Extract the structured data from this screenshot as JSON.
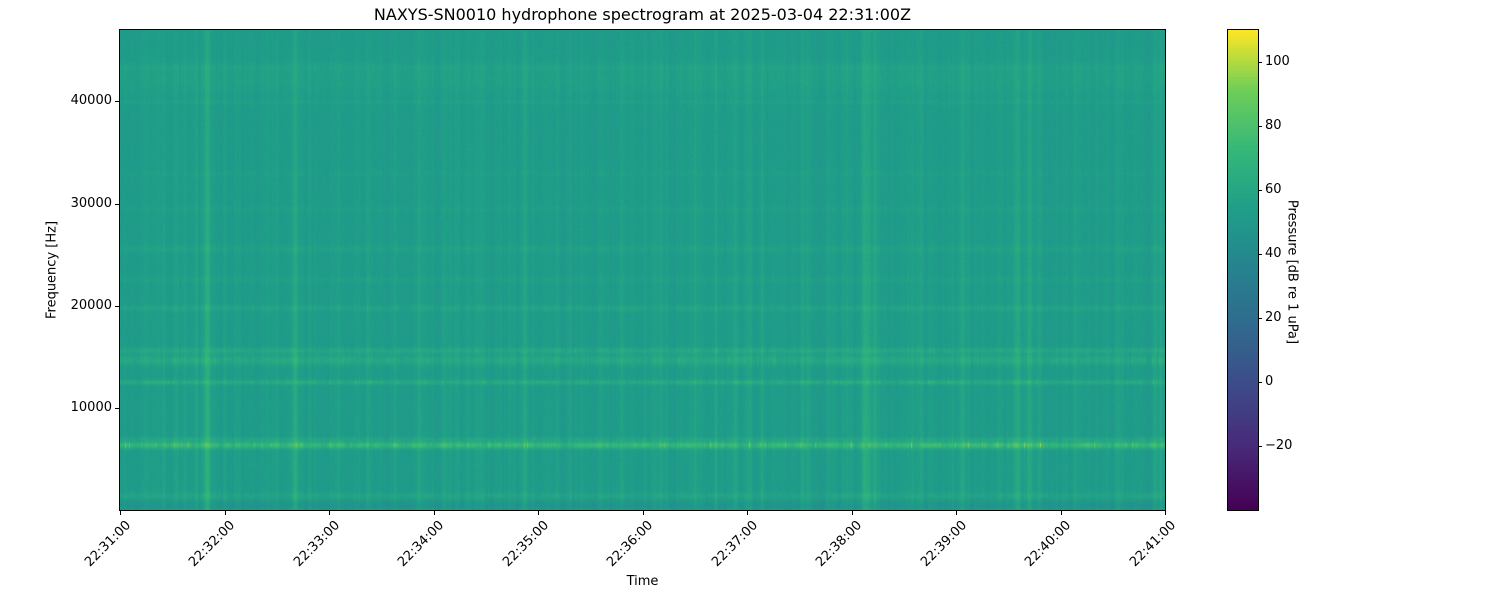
{
  "figure": {
    "title": "NAXYS-SN0010 hydrophone spectrogram at 2025-03-04 22:31:00Z",
    "xlabel": "Time",
    "ylabel": "Frequency [Hz]",
    "colorbar_label": "Pressure [dB re 1 uPa]"
  },
  "chart_data": {
    "type": "heatmap",
    "subtype": "spectrogram",
    "title": "NAXYS-SN0010 hydrophone spectrogram at 2025-03-04 22:31:00Z",
    "xlabel": "Time",
    "ylabel": "Frequency [Hz]",
    "x_range_s": [
      0,
      600
    ],
    "y_range_hz": [
      0,
      47000
    ],
    "x_ticks": [
      {
        "label": "22:31:00",
        "time_s": 0
      },
      {
        "label": "22:32:00",
        "time_s": 60
      },
      {
        "label": "22:33:00",
        "time_s": 120
      },
      {
        "label": "22:34:00",
        "time_s": 180
      },
      {
        "label": "22:35:00",
        "time_s": 240
      },
      {
        "label": "22:36:00",
        "time_s": 300
      },
      {
        "label": "22:37:00",
        "time_s": 360
      },
      {
        "label": "22:38:00",
        "time_s": 420
      },
      {
        "label": "22:39:00",
        "time_s": 480
      },
      {
        "label": "22:40:00",
        "time_s": 540
      },
      {
        "label": "22:41:00",
        "time_s": 600
      }
    ],
    "y_ticks": [
      {
        "label": "10000",
        "hz": 10000
      },
      {
        "label": "20000",
        "hz": 20000
      },
      {
        "label": "30000",
        "hz": 30000
      },
      {
        "label": "40000",
        "hz": 40000
      }
    ],
    "colormap": "viridis",
    "colormap_stops": [
      "#440154",
      "#482878",
      "#3e4989",
      "#31688e",
      "#26828e",
      "#1f9e89",
      "#35b779",
      "#6ece58",
      "#fde725"
    ],
    "colorbar": {
      "label": "Pressure [dB re 1 uPa]",
      "vmin": -40,
      "vmax": 110,
      "ticks": [
        {
          "label": "100",
          "value": 100
        },
        {
          "label": "80",
          "value": 80
        },
        {
          "label": "60",
          "value": 60
        },
        {
          "label": "40",
          "value": 40
        },
        {
          "label": "20",
          "value": 20
        },
        {
          "label": "0",
          "value": 0
        },
        {
          "label": "−20",
          "value": -20
        }
      ]
    },
    "background_level_db": 52,
    "noise_seed": 1337,
    "bands": [
      {
        "center_hz": 500,
        "width_hz": 450,
        "level_db": -5,
        "variability": 0.3
      },
      {
        "center_hz": 1450,
        "width_hz": 320,
        "level_db": 6,
        "variability": 0.9
      },
      {
        "center_hz": 6400,
        "width_hz": 340,
        "level_db": 24,
        "variability": 1.0
      },
      {
        "center_hz": 7000,
        "width_hz": 180,
        "level_db": 7,
        "variability": 1.0
      },
      {
        "center_hz": 12550,
        "width_hz": 230,
        "level_db": 12,
        "variability": 0.9
      },
      {
        "center_hz": 14700,
        "width_hz": 480,
        "level_db": 10,
        "variability": 0.85
      },
      {
        "center_hz": 15650,
        "width_hz": 280,
        "level_db": 9,
        "variability": 0.85
      },
      {
        "center_hz": 19800,
        "width_hz": 300,
        "level_db": 6,
        "variability": 0.8
      },
      {
        "center_hz": 22600,
        "width_hz": 320,
        "level_db": 3,
        "variability": 0.7
      },
      {
        "center_hz": 25600,
        "width_hz": 380,
        "level_db": 4,
        "variability": 0.75
      },
      {
        "center_hz": 29500,
        "width_hz": 280,
        "level_db": 2.5,
        "variability": 0.7
      },
      {
        "center_hz": 33000,
        "width_hz": 300,
        "level_db": 2,
        "variability": 0.7
      },
      {
        "center_hz": 40000,
        "width_hz": 220,
        "level_db": 3,
        "variability": 0.6
      },
      {
        "center_hz": 42200,
        "width_hz": 1500,
        "level_db": 3.5,
        "variability": 0.4
      },
      {
        "center_hz": 43400,
        "width_hz": 380,
        "level_db": 3,
        "variability": 0.5
      }
    ],
    "transients": [
      {
        "time_s": 25,
        "strength_db": 9,
        "width_s": 1.2
      },
      {
        "time_s": 50,
        "strength_db": 14,
        "width_s": 2.0
      },
      {
        "time_s": 68,
        "strength_db": 8,
        "width_s": 1.0
      },
      {
        "time_s": 100,
        "strength_db": 10,
        "width_s": 1.5
      },
      {
        "time_s": 125,
        "strength_db": 9,
        "width_s": 1.2
      },
      {
        "time_s": 142,
        "strength_db": 8,
        "width_s": 1.0
      },
      {
        "time_s": 172,
        "strength_db": 8,
        "width_s": 1.0
      },
      {
        "time_s": 205,
        "strength_db": 9,
        "width_s": 1.2
      },
      {
        "time_s": 232,
        "strength_db": 10,
        "width_s": 1.5
      },
      {
        "time_s": 258,
        "strength_db": 9,
        "width_s": 1.0
      },
      {
        "time_s": 288,
        "strength_db": 10,
        "width_s": 1.2
      },
      {
        "time_s": 310,
        "strength_db": 8,
        "width_s": 1.0
      },
      {
        "time_s": 342,
        "strength_db": 9,
        "width_s": 1.0
      },
      {
        "time_s": 368,
        "strength_db": 8,
        "width_s": 1.0
      },
      {
        "time_s": 395,
        "strength_db": 9,
        "width_s": 1.2
      },
      {
        "time_s": 428,
        "strength_db": 22,
        "width_s": 2.5
      },
      {
        "time_s": 433,
        "strength_db": 12,
        "width_s": 1.2
      },
      {
        "time_s": 455,
        "strength_db": 9,
        "width_s": 1.0
      },
      {
        "time_s": 483,
        "strength_db": 11,
        "width_s": 1.5
      },
      {
        "time_s": 515,
        "strength_db": 13,
        "width_s": 1.8
      },
      {
        "time_s": 522,
        "strength_db": 12,
        "width_s": 1.5
      },
      {
        "time_s": 548,
        "strength_db": 10,
        "width_s": 1.2
      },
      {
        "time_s": 572,
        "strength_db": 9,
        "width_s": 1.0
      },
      {
        "time_s": 594,
        "strength_db": 13,
        "width_s": 1.5
      }
    ]
  }
}
